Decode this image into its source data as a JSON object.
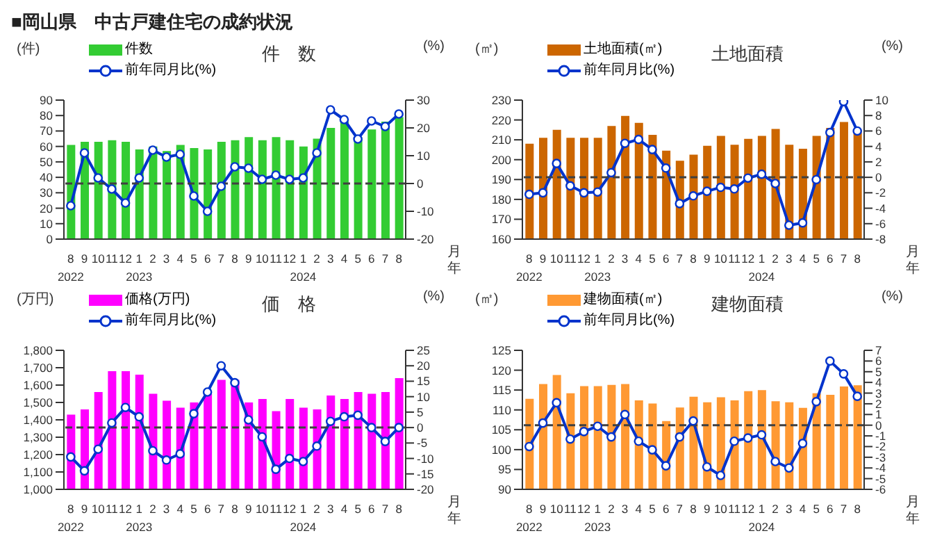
{
  "chart_data": [
    {
      "type": "bar",
      "title": "件　数",
      "ylabel": "(件)",
      "y2label": "(%)",
      "xlabel": "月年",
      "annotations": [
        "■岡山県　中古戸建住宅の成約状況"
      ],
      "categories": [
        "8\n2022",
        "9",
        "10",
        "11",
        "12",
        "1\n2023",
        "2",
        "3",
        "4",
        "5",
        "6",
        "7",
        "8",
        "9",
        "10",
        "11",
        "12",
        "1\n2024",
        "2",
        "3",
        "4",
        "5",
        "6",
        "7",
        "8"
      ],
      "series": [
        {
          "name": "件数",
          "type": "bar",
          "color": "#33cc33",
          "values": [
            61,
            63,
            63,
            64,
            63,
            58,
            60,
            57,
            61,
            59,
            58,
            63,
            64,
            66,
            64,
            66,
            64,
            60,
            65,
            72,
            76,
            66,
            71,
            76,
            79
          ]
        },
        {
          "name": "前年同月比(%)",
          "type": "line",
          "axis": "y2",
          "color": "#0033cc",
          "values": [
            -8,
            11,
            2,
            -2,
            -7,
            2,
            12,
            9.5,
            10.5,
            -4.5,
            -10,
            -1,
            6,
            5.5,
            1.5,
            3,
            1.5,
            2,
            11,
            26.5,
            23,
            16,
            22.5,
            20.5,
            25
          ]
        }
      ],
      "ylim": [
        0,
        90
      ],
      "yticks": [
        0,
        10,
        20,
        30,
        40,
        50,
        60,
        70,
        80,
        90
      ],
      "y2lim": [
        -20,
        30
      ],
      "y2ticks": [
        -20,
        -10,
        0,
        10,
        20,
        30
      ],
      "ref_lines": [
        {
          "axis": "y2",
          "value": 0,
          "color": "#404040",
          "line_style": "dashed"
        }
      ],
      "legend": "top left",
      "marker": "circle",
      "line_style": "solid"
    },
    {
      "type": "bar",
      "title": "土地面積",
      "ylabel": "(㎡)",
      "y2label": "(%)",
      "xlabel": "月年",
      "categories": [
        "8\n2022",
        "9",
        "10",
        "11",
        "12",
        "1\n2023",
        "2",
        "3",
        "4",
        "5",
        "6",
        "7",
        "8",
        "9",
        "10",
        "11",
        "12",
        "1\n2024",
        "2",
        "3",
        "4",
        "5",
        "6",
        "7",
        "8"
      ],
      "series": [
        {
          "name": "土地面積(㎡)",
          "type": "bar",
          "color": "#cc6600",
          "values": [
            208,
            211,
            215,
            211,
            211,
            211,
            217,
            222,
            218.5,
            212.5,
            204.5,
            199.5,
            202.5,
            207,
            212,
            207.5,
            210.5,
            212,
            215.5,
            207.5,
            205.5,
            212,
            216,
            219,
            215
          ]
        },
        {
          "name": "前年同月比(%)",
          "type": "line",
          "axis": "y2",
          "color": "#0033cc",
          "values": [
            -2.2,
            -2,
            1.8,
            -1.1,
            -2,
            -1.9,
            0.6,
            4.4,
            4.9,
            3.6,
            1.2,
            -3.4,
            -2.4,
            -1.8,
            -1.3,
            -1.5,
            -0.1,
            0.4,
            -0.8,
            -6.2,
            -5.9,
            -0.3,
            5.8,
            9.8,
            6
          ]
        }
      ],
      "ylim": [
        160,
        230
      ],
      "yticks": [
        160,
        170,
        180,
        190,
        200,
        210,
        220,
        230
      ],
      "y2lim": [
        -8,
        10
      ],
      "y2ticks": [
        -8,
        -6,
        -4,
        -2,
        0,
        2,
        4,
        6,
        8,
        10
      ],
      "ref_lines": [
        {
          "axis": "y2",
          "value": 0,
          "color": "#404040",
          "line_style": "dashed"
        }
      ],
      "legend": "top left",
      "marker": "circle",
      "line_style": "solid"
    },
    {
      "type": "bar",
      "title": "価　格",
      "ylabel": "(万円)",
      "y2label": "(%)",
      "xlabel": "月年",
      "categories": [
        "8\n2022",
        "9",
        "10",
        "11",
        "12",
        "1\n2023",
        "2",
        "3",
        "4",
        "5",
        "6",
        "7",
        "8",
        "9",
        "10",
        "11",
        "12",
        "1\n2024",
        "2",
        "3",
        "4",
        "5",
        "6",
        "7",
        "8"
      ],
      "series": [
        {
          "name": "価格(万円)",
          "type": "bar",
          "color": "#ff00ff",
          "values": [
            1430,
            1460,
            1560,
            1680,
            1680,
            1660,
            1550,
            1510,
            1470,
            1500,
            1550,
            1630,
            1630,
            1500,
            1520,
            1450,
            1520,
            1470,
            1460,
            1540,
            1520,
            1560,
            1550,
            1560,
            1640
          ]
        },
        {
          "name": "前年同月比(%)",
          "type": "line",
          "axis": "y2",
          "color": "#0033cc",
          "values": [
            -9.5,
            -14,
            -7,
            1.5,
            6.5,
            3.5,
            -7.5,
            -10.5,
            -8.5,
            4.5,
            11.5,
            20,
            14.5,
            2.5,
            -3,
            -13.5,
            -10,
            -11,
            -6,
            2,
            3.5,
            4,
            0,
            -4.5,
            0
          ]
        }
      ],
      "ylim": [
        1000,
        1800
      ],
      "yticks": [
        {
          "value": 1000,
          "label": "1,000"
        },
        {
          "value": 1100,
          "label": "1,100"
        },
        {
          "value": 1200,
          "label": "1,200"
        },
        {
          "value": 1300,
          "label": "1,300"
        },
        {
          "value": 1400,
          "label": "1,400"
        },
        {
          "value": 1500,
          "label": "1,500"
        },
        {
          "value": 1600,
          "label": "1,600"
        },
        {
          "value": 1700,
          "label": "1,700"
        },
        {
          "value": 1800,
          "label": "1,800"
        }
      ],
      "y2lim": [
        -20,
        25
      ],
      "y2ticks": [
        -20,
        -15,
        -10,
        -5,
        0,
        5,
        10,
        15,
        20,
        25
      ],
      "ref_lines": [
        {
          "axis": "y2",
          "value": 0,
          "color": "#404040",
          "line_style": "dashed"
        }
      ],
      "legend": "top left",
      "marker": "circle",
      "line_style": "solid"
    },
    {
      "type": "bar",
      "title": "建物面積",
      "ylabel": "(㎡)",
      "y2label": "(%)",
      "xlabel": "月年",
      "categories": [
        "8\n2022",
        "9",
        "10",
        "11",
        "12",
        "1\n2023",
        "2",
        "3",
        "4",
        "5",
        "6",
        "7",
        "8",
        "9",
        "10",
        "11",
        "12",
        "1\n2024",
        "2",
        "3",
        "4",
        "5",
        "6",
        "7",
        "8"
      ],
      "series": [
        {
          "name": "建物面積(㎡)",
          "type": "bar",
          "color": "#ff9933",
          "values": [
            112.8,
            116.5,
            118.8,
            114.2,
            116,
            116,
            116.3,
            116.5,
            112.4,
            111.6,
            107.2,
            110.6,
            113.3,
            111.9,
            113.2,
            112.4,
            114.7,
            115,
            112.2,
            111.9,
            110.5,
            114.2,
            113.8,
            115.9,
            116.2
          ]
        },
        {
          "name": "前年同月比(%)",
          "type": "line",
          "axis": "y2",
          "color": "#0033cc",
          "values": [
            -2,
            0.2,
            2.1,
            -1.3,
            -0.6,
            -0.1,
            -1.1,
            1,
            -1.5,
            -2.3,
            -3.8,
            -1.1,
            0.4,
            -3.9,
            -4.7,
            -1.5,
            -1.2,
            -0.9,
            -3.4,
            -4,
            -1.7,
            2.2,
            6,
            4.8,
            2.7
          ]
        }
      ],
      "ylim": [
        90,
        125
      ],
      "yticks": [
        90,
        95,
        100,
        105,
        110,
        115,
        120,
        125
      ],
      "y2lim": [
        -6,
        7
      ],
      "y2ticks": [
        -6,
        -5,
        -4,
        -3,
        -2,
        -1,
        0,
        1,
        2,
        3,
        4,
        5,
        6,
        7
      ],
      "ref_lines": [
        {
          "axis": "y2",
          "value": 0,
          "color": "#404040",
          "line_style": "dashed"
        }
      ],
      "legend": "top left",
      "marker": "circle",
      "line_style": "solid"
    }
  ]
}
